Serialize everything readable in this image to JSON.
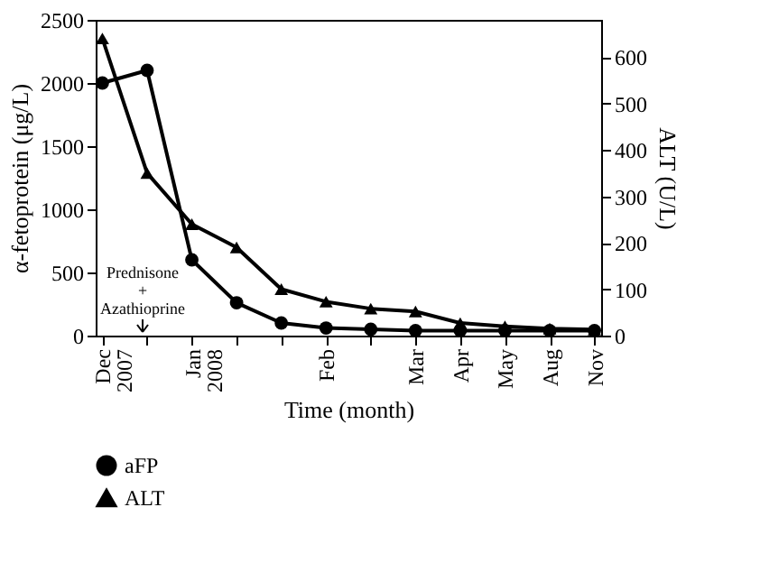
{
  "chart_data": {
    "type": "line",
    "xlabel": "Time (month)",
    "ylabel": "α-fetoprotein (μg/L)",
    "y2label": "ALT (U/L)",
    "categories": [
      "Dec 2007",
      null,
      "Jan 2008",
      null,
      null,
      "Feb",
      null,
      "Mar",
      "Apr",
      "May",
      "Aug",
      "Nov"
    ],
    "ylim": [
      0,
      2500
    ],
    "yticks": [
      0,
      500,
      1000,
      1500,
      2000,
      2500
    ],
    "y2lim": [
      0,
      680
    ],
    "y2ticks": [
      0,
      100,
      200,
      300,
      400,
      500,
      600
    ],
    "series": [
      {
        "name": "aFP",
        "color": "#000000",
        "marker": "circle",
        "values": [
          2000,
          2100,
          600,
          260,
          100,
          60,
          50,
          40,
          40,
          40,
          40,
          40
        ]
      },
      {
        "name": "ALT",
        "color": "#000000",
        "marker": "triangle",
        "axis": "y2",
        "values": [
          640,
          350,
          240,
          190,
          100,
          73,
          58,
          52,
          27,
          20,
          15,
          13
        ]
      }
    ],
    "annotations": [
      "Prednisone + Azathioprine"
    ],
    "legend": "bottom left",
    "grid": false,
    "line_style": "solid"
  }
}
